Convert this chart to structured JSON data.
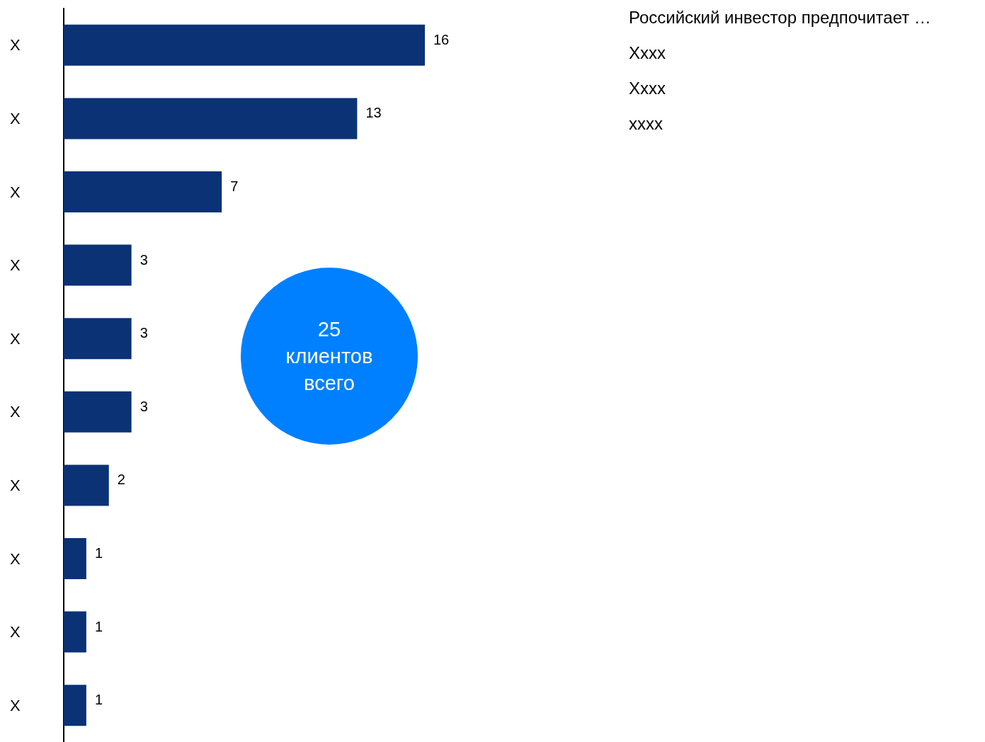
{
  "chart_data": {
    "type": "bar",
    "orientation": "horizontal",
    "categories": [
      "X",
      "X",
      "X",
      "X",
      "X",
      "X",
      "X",
      "X",
      "X",
      "X"
    ],
    "values": [
      16,
      13,
      7,
      3,
      3,
      3,
      2,
      1,
      1,
      1
    ],
    "color": "#0b3275",
    "data_labels": true,
    "annotations": [
      "Российский инвестор предпочитает …",
      "Xxxx",
      "Xxxx",
      "xxxx",
      "25\nклиентов\nвсего"
    ]
  }
}
